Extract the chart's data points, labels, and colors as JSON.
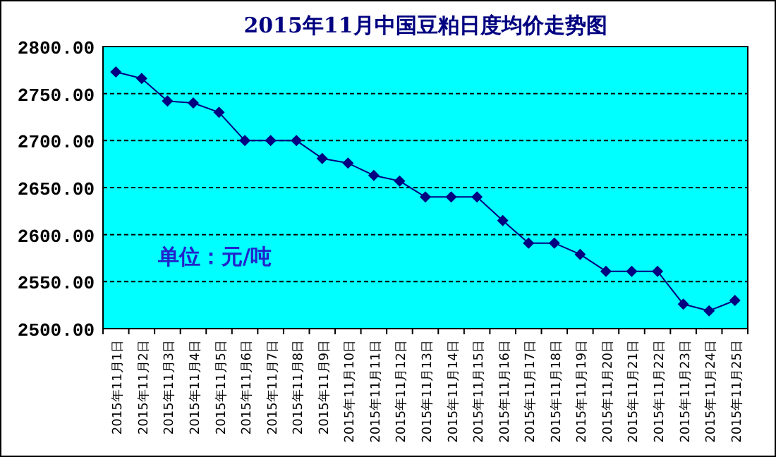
{
  "chart_data": {
    "type": "line",
    "title": "2015年11月中国豆粕日度均价走势图",
    "categories": [
      "2015年11月1日",
      "2015年11月2日",
      "2015年11月3日",
      "2015年11月4日",
      "2015年11月5日",
      "2015年11月6日",
      "2015年11月7日",
      "2015年11月8日",
      "2015年11月9日",
      "2015年11月10日",
      "2015年11月11日",
      "2015年11月12日",
      "2015年11月13日",
      "2015年11月14日",
      "2015年11月15日",
      "2015年11月16日",
      "2015年11月17日",
      "2015年11月18日",
      "2015年11月19日",
      "2015年11月20日",
      "2015年11月21日",
      "2015年11月22日",
      "2015年11月23日",
      "2015年11月24日",
      "2015年11月25日"
    ],
    "series": [
      {
        "color": "#000080",
        "values": [
          2773,
          2766,
          2742,
          2740,
          2730,
          2700,
          2700,
          2700,
          2681,
          2676,
          2663,
          2657,
          2640,
          2640,
          2640,
          2615,
          2591,
          2591,
          2579,
          2561,
          2561,
          2561,
          2526,
          2519,
          2530
        ]
      }
    ],
    "ylim": [
      2500,
      2800
    ],
    "yticks": [
      {
        "value": 2500,
        "label": "2500.00"
      },
      {
        "value": 2550,
        "label": "2550.00"
      },
      {
        "value": 2600,
        "label": "2600.00"
      },
      {
        "value": 2650,
        "label": "2650.00"
      },
      {
        "value": 2700,
        "label": "2700.00"
      },
      {
        "value": 2750,
        "label": "2750.00"
      },
      {
        "value": 2800,
        "label": "2800.00"
      }
    ],
    "grid": "y",
    "marker": "diamond",
    "line_style": "solid",
    "annotations": [
      "单位：元/吨"
    ]
  }
}
